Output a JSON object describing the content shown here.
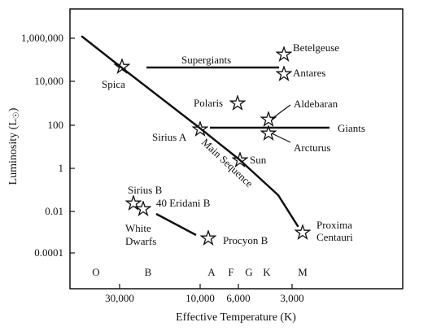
{
  "diagram": {
    "y_axis_label": "Luminosity (L",
    "y_axis_label_suffix": "☉",
    "y_axis_label_close": ")",
    "x_axis_label": "Effective Temperature (K)",
    "y_ticks": [
      "1,000,000",
      "10,000",
      "100",
      "1",
      "0.01",
      "0.0001"
    ],
    "x_ticks": [
      "30,000",
      "10,000",
      "6,000",
      "3,000"
    ],
    "spectral_classes": [
      "O",
      "B",
      "A",
      "F",
      "G",
      "K",
      "M"
    ],
    "labels": {
      "betelgeuse": "Betelgeuse",
      "antares": "Antares",
      "supergiants": "Supergiants",
      "spica": "Spica",
      "polaris": "Polaris",
      "aldebaran": "Aldebaran",
      "giants": "Giants",
      "sirius_a": "Sirius A",
      "arcturus": "Arcturus",
      "sun": "Sun",
      "main_sequence": "Main Sequence",
      "sirius_b": "Sirius B",
      "eridani_b": "40 Eridani B",
      "white_dwarfs_1": "White",
      "white_dwarfs_2": "Dwarfs",
      "procyon_b": "Procyon B",
      "proxima_1": "Proxima",
      "proxima_2": "Centauri"
    },
    "colors": {
      "ink": "#111111",
      "background": "#ffffff"
    }
  }
}
